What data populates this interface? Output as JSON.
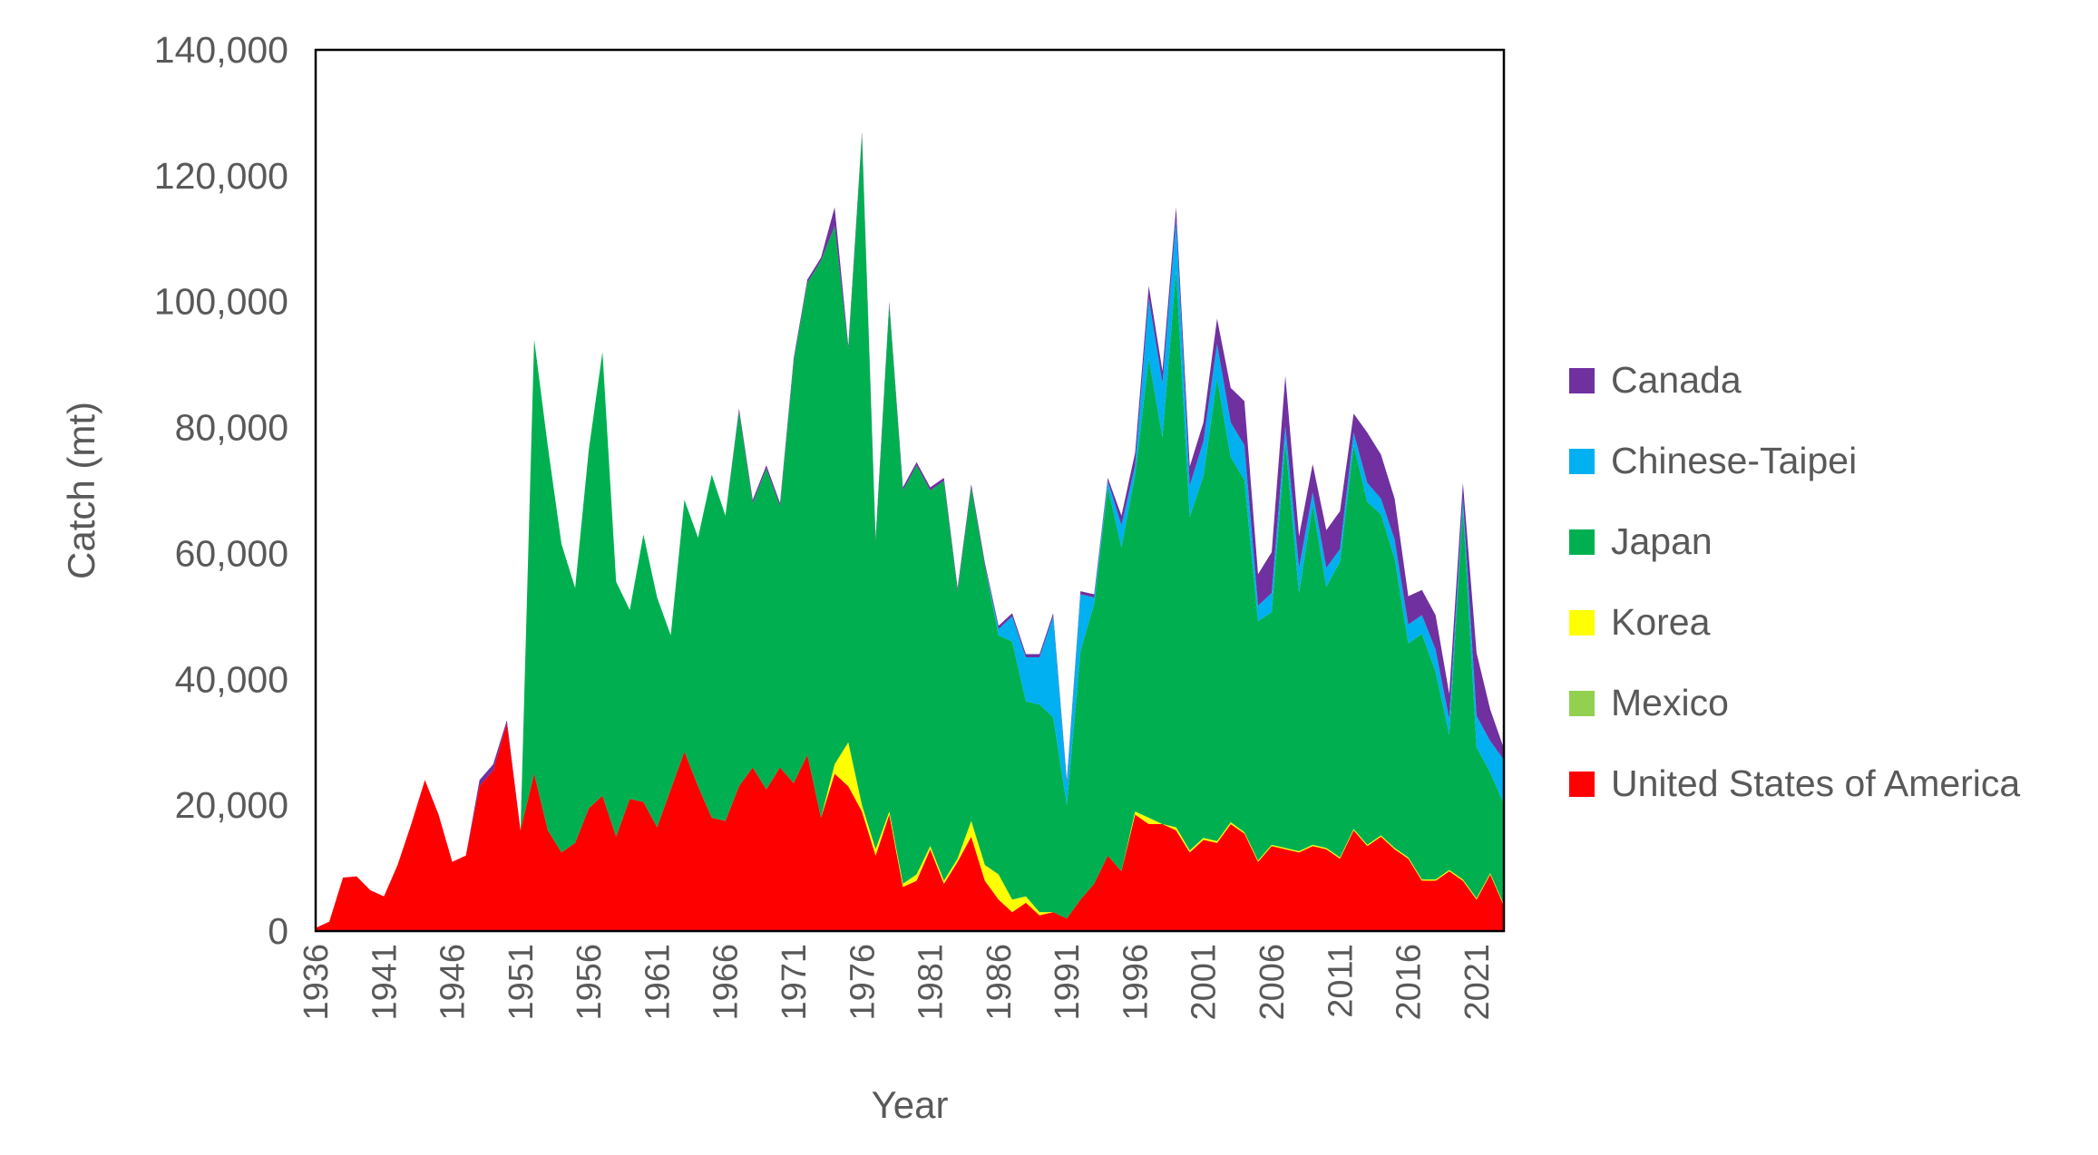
{
  "chart_data": {
    "type": "area",
    "stacked": true,
    "xlabel": "Year",
    "ylabel": "Catch (mt)",
    "ylim": [
      0,
      140000
    ],
    "yticks": [
      0,
      20000,
      40000,
      60000,
      80000,
      100000,
      120000,
      140000
    ],
    "ytick_labels": [
      "0",
      "20,000",
      "40,000",
      "60,000",
      "80,000",
      "100,000",
      "120,000",
      "140,000"
    ],
    "xlim": [
      1936,
      2023
    ],
    "xticks": [
      1936,
      1941,
      1946,
      1951,
      1956,
      1961,
      1966,
      1971,
      1976,
      1981,
      1986,
      1991,
      1996,
      2001,
      2006,
      2011,
      2016,
      2021
    ],
    "xtick_labels": [
      "1936",
      "1941",
      "1946",
      "1951",
      "1956",
      "1961",
      "1966",
      "1971",
      "1976",
      "1981",
      "1986",
      "1991",
      "1996",
      "2001",
      "2006",
      "2011",
      "2016",
      "2021"
    ],
    "grid": false,
    "legend_position": "right",
    "x": [
      1936,
      1937,
      1938,
      1939,
      1940,
      1941,
      1942,
      1943,
      1944,
      1945,
      1946,
      1947,
      1948,
      1949,
      1950,
      1951,
      1952,
      1953,
      1954,
      1955,
      1956,
      1957,
      1958,
      1959,
      1960,
      1961,
      1962,
      1963,
      1964,
      1965,
      1966,
      1967,
      1968,
      1969,
      1970,
      1971,
      1972,
      1973,
      1974,
      1975,
      1976,
      1977,
      1978,
      1979,
      1980,
      1981,
      1982,
      1983,
      1984,
      1985,
      1986,
      1987,
      1988,
      1989,
      1990,
      1991,
      1992,
      1993,
      1994,
      1995,
      1996,
      1997,
      1998,
      1999,
      2000,
      2001,
      2002,
      2003,
      2004,
      2005,
      2006,
      2007,
      2008,
      2009,
      2010,
      2011,
      2012,
      2013,
      2014,
      2015,
      2016,
      2017,
      2018,
      2019,
      2020,
      2021,
      2022,
      2023
    ],
    "series": [
      {
        "name": "United States of America",
        "color": "#FF0000",
        "values": [
          500,
          1500,
          8500,
          8700,
          6500,
          5500,
          10500,
          17000,
          24000,
          18500,
          11000,
          12000,
          23000,
          25500,
          33000,
          16000,
          25000,
          16000,
          12500,
          14000,
          19500,
          21500,
          15000,
          21000,
          20500,
          16500,
          22500,
          28500,
          23000,
          18000,
          17500,
          23000,
          26000,
          22500,
          26000,
          23500,
          28000,
          18000,
          25000,
          23000,
          19000,
          12000,
          18500,
          7000,
          8000,
          13000,
          7500,
          11000,
          15000,
          8000,
          5000,
          3000,
          4500,
          2500,
          3000,
          2000,
          5000,
          7500,
          12000,
          9500,
          18500,
          17000,
          17000,
          16000,
          12500,
          14500,
          14000,
          17000,
          15500,
          11000,
          13500,
          13000,
          12500,
          13500,
          13000,
          11500,
          16000,
          13500,
          15000,
          13000,
          11500,
          8000,
          8000,
          9500,
          8000,
          5000,
          9000,
          4000
        ]
      },
      {
        "name": "Mexico",
        "color": "#92D050",
        "values": [
          0,
          0,
          0,
          0,
          0,
          0,
          0,
          0,
          0,
          0,
          0,
          0,
          0,
          0,
          0,
          0,
          0,
          0,
          0,
          0,
          0,
          0,
          0,
          0,
          0,
          0,
          0,
          0,
          0,
          0,
          0,
          0,
          0,
          0,
          0,
          0,
          0,
          0,
          0,
          0,
          0,
          0,
          0,
          0,
          0,
          0,
          0,
          0,
          0,
          0,
          0,
          0,
          0,
          0,
          0,
          0,
          0,
          0,
          0,
          0,
          0,
          0,
          0,
          0,
          0,
          0,
          0,
          0,
          0,
          0,
          0,
          0,
          0,
          0,
          0,
          0,
          0,
          0,
          0,
          0,
          0,
          0,
          0,
          0,
          0,
          0,
          0,
          0
        ]
      },
      {
        "name": "Korea",
        "color": "#FFFF00",
        "values": [
          0,
          0,
          0,
          0,
          0,
          0,
          0,
          0,
          0,
          0,
          0,
          0,
          0,
          0,
          0,
          0,
          0,
          0,
          0,
          0,
          0,
          0,
          0,
          0,
          0,
          0,
          0,
          0,
          0,
          0,
          0,
          0,
          0,
          0,
          0,
          0,
          0,
          0,
          1500,
          7000,
          1000,
          1000,
          500,
          500,
          1000,
          500,
          500,
          500,
          2500,
          2500,
          4000,
          2000,
          1000,
          500,
          0,
          0,
          0,
          0,
          0,
          0,
          500,
          1000,
          0,
          500,
          300,
          300,
          300,
          300,
          200,
          200,
          200,
          200,
          200,
          200,
          200,
          200,
          200,
          200,
          200,
          200,
          200,
          200,
          200,
          200,
          200,
          200,
          200,
          200
        ]
      },
      {
        "name": "Japan",
        "color": "#00B050",
        "values": [
          0,
          0,
          0,
          0,
          0,
          0,
          0,
          0,
          0,
          0,
          0,
          0,
          0,
          0,
          0,
          0,
          69000,
          61000,
          49000,
          40500,
          57000,
          70500,
          40500,
          30000,
          42500,
          36500,
          24500,
          40000,
          39500,
          54500,
          48500,
          59500,
          42000,
          51000,
          41500,
          67000,
          75000,
          88500,
          85500,
          62500,
          106500,
          49000,
          80500,
          62500,
          65000,
          56500,
          63500,
          42500,
          53000,
          47500,
          38000,
          41000,
          31000,
          33000,
          31000,
          18000,
          39500,
          44500,
          58500,
          51500,
          53500,
          73000,
          61500,
          88500,
          53000,
          57500,
          73500,
          58000,
          56000,
          38000,
          37000,
          64500,
          41000,
          54000,
          41500,
          47000,
          61000,
          54500,
          51000,
          46000,
          34000,
          39000,
          33000,
          21500,
          59000,
          24000,
          16000,
          16000
        ]
      },
      {
        "name": "Chinese-Taipei",
        "color": "#00B0F0",
        "values": [
          0,
          0,
          0,
          0,
          0,
          0,
          0,
          0,
          0,
          0,
          0,
          0,
          0,
          0,
          0,
          0,
          0,
          0,
          0,
          0,
          0,
          0,
          0,
          0,
          0,
          0,
          0,
          0,
          0,
          0,
          0,
          0,
          0,
          0,
          0,
          0,
          0,
          0,
          0,
          0,
          0,
          0,
          0,
          0,
          0,
          0,
          0,
          0,
          0,
          0,
          1000,
          4000,
          7000,
          7500,
          16000,
          3500,
          9000,
          1000,
          1000,
          3500,
          1500,
          9500,
          8500,
          8000,
          5000,
          5500,
          5500,
          5500,
          5500,
          2500,
          3000,
          2500,
          4000,
          2000,
          3000,
          2000,
          2000,
          3000,
          2500,
          3000,
          3000,
          3000,
          3500,
          2500,
          1500,
          5000,
          5000,
          7000
        ]
      },
      {
        "name": "Canada",
        "color": "#7030A0",
        "values": [
          0,
          0,
          0,
          0,
          0,
          0,
          0,
          0,
          0,
          0,
          0,
          0,
          1000,
          1000,
          500,
          0,
          0,
          0,
          0,
          0,
          0,
          0,
          0,
          0,
          0,
          0,
          0,
          0,
          0,
          0,
          0,
          500,
          500,
          500,
          500,
          500,
          500,
          500,
          3000,
          500,
          500,
          500,
          500,
          500,
          500,
          500,
          500,
          500,
          500,
          500,
          500,
          500,
          500,
          500,
          500,
          500,
          500,
          500,
          500,
          1500,
          2000,
          2000,
          2000,
          2000,
          3000,
          3000,
          4000,
          5500,
          7000,
          5000,
          6500,
          8000,
          5000,
          4500,
          6000,
          6000,
          3000,
          8000,
          7000,
          6500,
          4500,
          4000,
          5500,
          4000,
          2500,
          10000,
          5000,
          1800
        ]
      }
    ],
    "legend_order": [
      "Canada",
      "Chinese-Taipei",
      "Japan",
      "Korea",
      "Mexico",
      "United States of America"
    ]
  }
}
